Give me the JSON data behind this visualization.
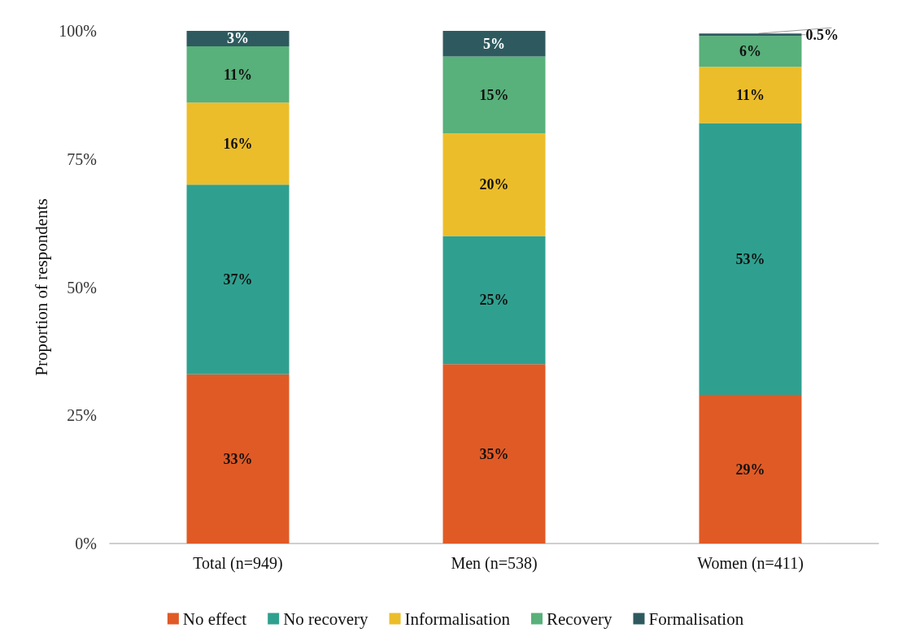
{
  "chart_data": {
    "type": "bar",
    "stacked": true,
    "ylabel": "Proportion of respondents",
    "categories": [
      "Total (n=949)",
      "Men (n=538)",
      "Women (n=411)"
    ],
    "series": [
      {
        "name": "No effect",
        "color": "#e05a26",
        "values": [
          33,
          35,
          29
        ],
        "value_labels": [
          "33%",
          "35%",
          "29%"
        ]
      },
      {
        "name": "No recovery",
        "color": "#2fa08f",
        "values": [
          37,
          25,
          53
        ],
        "value_labels": [
          "37%",
          "25%",
          "53%"
        ]
      },
      {
        "name": "Informalisation",
        "color": "#ecbd2a",
        "values": [
          16,
          20,
          11
        ],
        "value_labels": [
          "16%",
          "20%",
          "11%"
        ]
      },
      {
        "name": "Recovery",
        "color": "#58b07a",
        "values": [
          11,
          15,
          6
        ],
        "value_labels": [
          "11%",
          "15%",
          "6%"
        ]
      },
      {
        "name": "Formalisation",
        "color": "#2e5a5f",
        "values": [
          3,
          5,
          0.5
        ],
        "value_labels": [
          "3%",
          "5%",
          "0.5%"
        ]
      }
    ],
    "ylim": [
      0,
      100
    ],
    "yticks": [
      {
        "value": 0,
        "label": "0%"
      },
      {
        "value": 25,
        "label": "25%"
      },
      {
        "value": 50,
        "label": "50%"
      },
      {
        "value": 75,
        "label": "75%"
      },
      {
        "value": 100,
        "label": "100%"
      }
    ],
    "grid": false,
    "legend": "bottom"
  }
}
